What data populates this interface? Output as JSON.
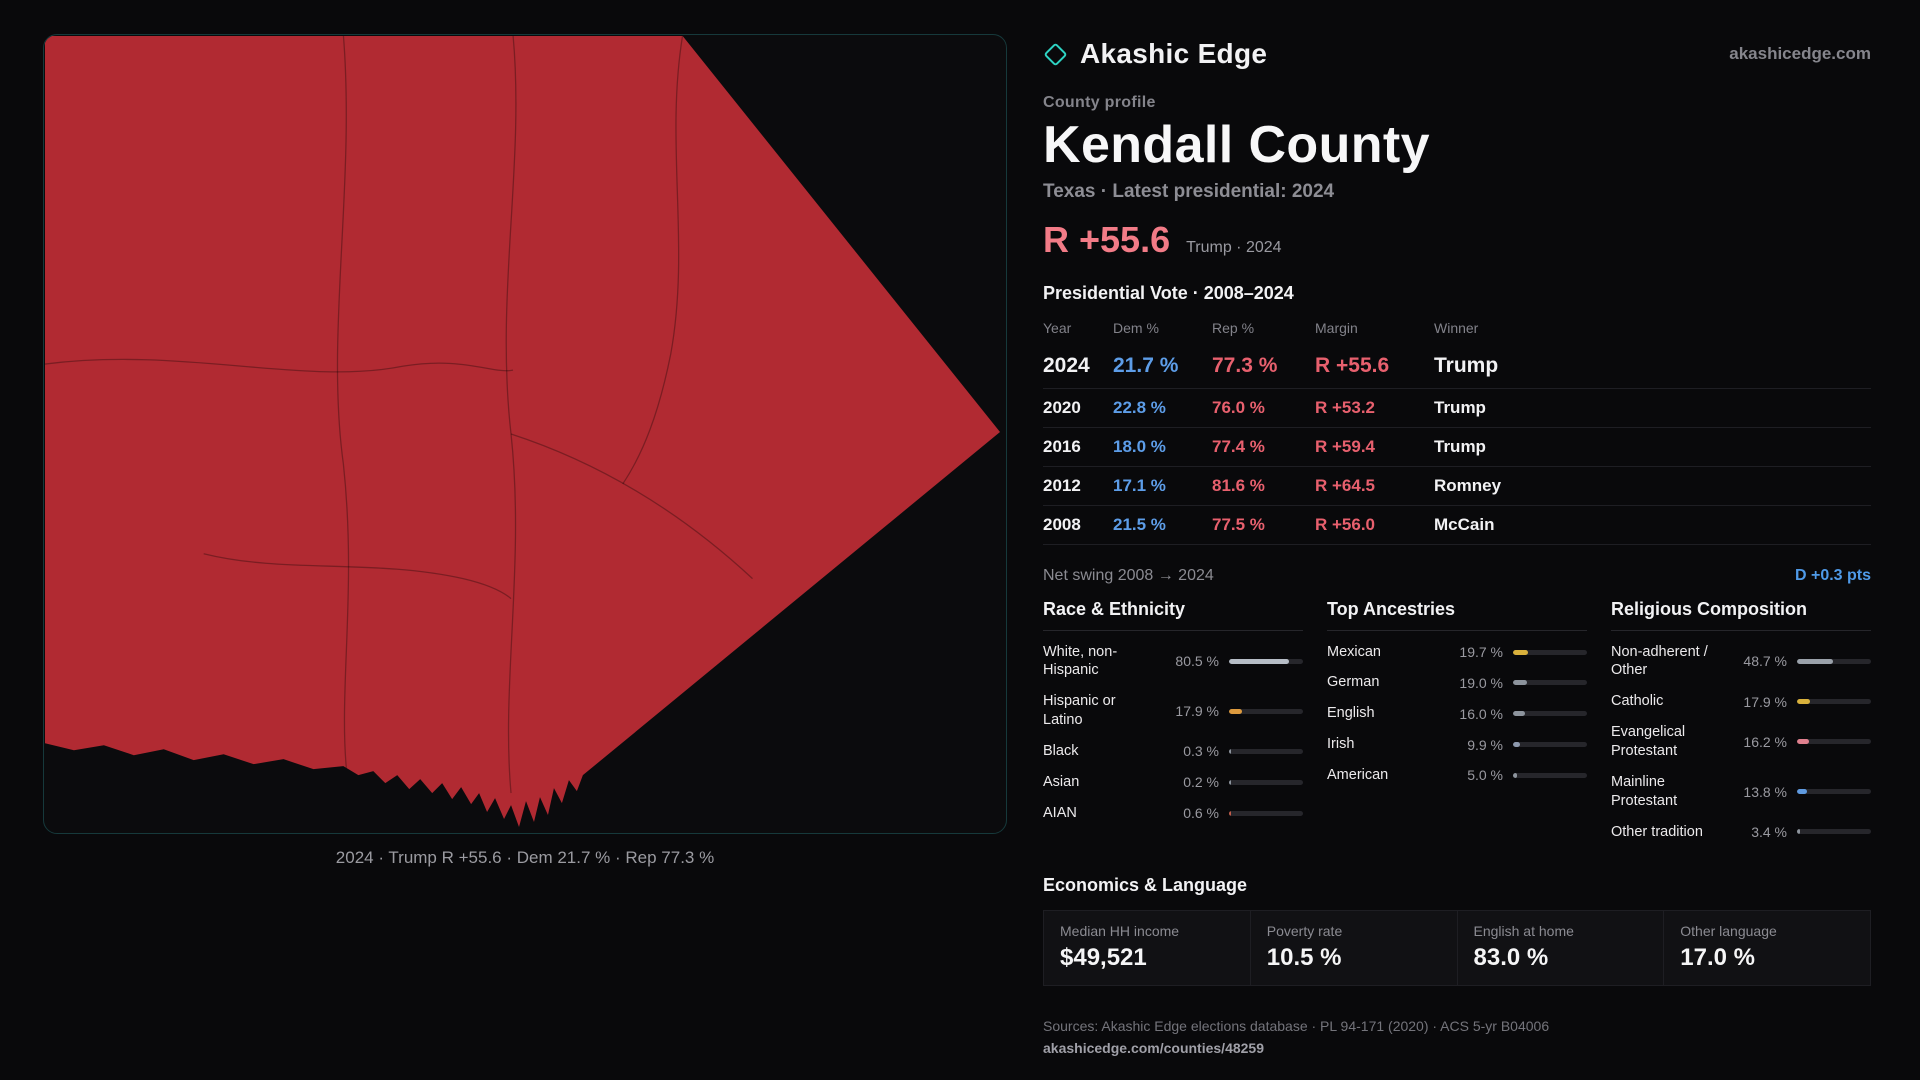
{
  "header": {
    "brand": "Akashic Edge",
    "site": "akashicedge.com"
  },
  "profile": {
    "kicker": "County profile",
    "title": "Kendall County",
    "subtitle": "Texas · Latest presidential: 2024",
    "headline": {
      "value": "R +55.6",
      "note": "Trump · 2024"
    },
    "table_title": "Presidential Vote · 2008–2024"
  },
  "map": {
    "fill": "#b12a32",
    "caption": "2024 · Trump R +55.6 · Dem 21.7 % · Rep 77.3 %"
  },
  "vote_table": {
    "columns": [
      "Year",
      "Dem %",
      "Rep %",
      "Margin",
      "Winner"
    ],
    "rows": [
      {
        "year": "2024",
        "dem": "21.7 %",
        "rep": "77.3 %",
        "margin": "R +55.6",
        "winner": "Trump"
      },
      {
        "year": "2020",
        "dem": "22.8 %",
        "rep": "76.0 %",
        "margin": "R +53.2",
        "winner": "Trump"
      },
      {
        "year": "2016",
        "dem": "18.0 %",
        "rep": "77.4 %",
        "margin": "R +59.4",
        "winner": "Trump"
      },
      {
        "year": "2012",
        "dem": "17.1 %",
        "rep": "81.6 %",
        "margin": "R +64.5",
        "winner": "Romney"
      },
      {
        "year": "2008",
        "dem": "21.5 %",
        "rep": "77.5 %",
        "margin": "R +56.0",
        "winner": "McCain"
      }
    ]
  },
  "net_swing": {
    "label": "Net swing 2008 → 2024",
    "value": "D +0.3 pts"
  },
  "demographics": [
    {
      "title": "Race & Ethnicity",
      "rows": [
        {
          "label": "White, non-Hispanic",
          "value": "80.5 %",
          "pct": 80.5,
          "color": "#b6bdc6"
        },
        {
          "label": "Hispanic or Latino",
          "value": "17.9 %",
          "pct": 17.9,
          "color": "#dd9a3e"
        },
        {
          "label": "Black",
          "value": "0.3 %",
          "pct": 0.3,
          "color": "#8d949d"
        },
        {
          "label": "Asian",
          "value": "0.2 %",
          "pct": 0.2,
          "color": "#8d949d"
        },
        {
          "label": "AIAN",
          "value": "0.6 %",
          "pct": 0.6,
          "color": "#c05c4a"
        }
      ]
    },
    {
      "title": "Top Ancestries",
      "rows": [
        {
          "label": "Mexican",
          "value": "19.7 %",
          "pct": 19.7,
          "color": "#d9b13c"
        },
        {
          "label": "German",
          "value": "19.0 %",
          "pct": 19.0,
          "color": "#8d949d"
        },
        {
          "label": "English",
          "value": "16.0 %",
          "pct": 16.0,
          "color": "#8d949d"
        },
        {
          "label": "Irish",
          "value": "9.9 %",
          "pct": 9.9,
          "color": "#8d99ad"
        },
        {
          "label": "American",
          "value": "5.0 %",
          "pct": 5.0,
          "color": "#8d949d"
        }
      ]
    },
    {
      "title": "Religious Composition",
      "rows": [
        {
          "label": "Non-adherent / Other",
          "value": "48.7 %",
          "pct": 48.7,
          "color": "#9aa1aa"
        },
        {
          "label": "Catholic",
          "value": "17.9 %",
          "pct": 17.9,
          "color": "#d9b13c"
        },
        {
          "label": "Evangelical Protestant",
          "value": "16.2 %",
          "pct": 16.2,
          "color": "#e0808e"
        },
        {
          "label": "Mainline Protestant",
          "value": "13.8 %",
          "pct": 13.8,
          "color": "#5f9ae0"
        },
        {
          "label": "Other tradition",
          "value": "3.4 %",
          "pct": 3.4,
          "color": "#8d949d"
        }
      ]
    }
  ],
  "economics": {
    "title": "Economics & Language",
    "stats": [
      {
        "label": "Median HH income",
        "value": "$49,521"
      },
      {
        "label": "Poverty rate",
        "value": "10.5 %"
      },
      {
        "label": "English at home",
        "value": "83.0 %"
      },
      {
        "label": "Other language",
        "value": "17.0 %"
      }
    ]
  },
  "footer": {
    "sources": "Sources: Akashic Edge elections database · PL 94-171 (2020) · ACS 5-yr B04006",
    "permalink": "akashicedge.com/counties/48259"
  },
  "colors": {
    "dem_blue": "#5d9de8",
    "rep_red": "#e8606e",
    "headline_red": "#f27b87",
    "swing_blue": "#4f9ae8",
    "county_fill": "#b12a32",
    "brand_teal": "#2ed3c3"
  }
}
